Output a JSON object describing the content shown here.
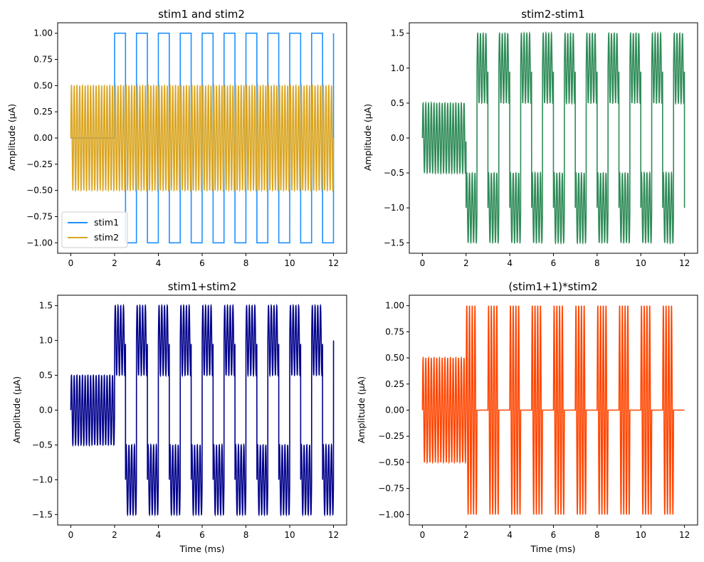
{
  "chart_data": [
    {
      "type": "line",
      "title": "stim1 and stim2",
      "xlabel": "",
      "ylabel": "Amplitude (µA)",
      "xlim": [
        -0.6,
        12.6
      ],
      "ylim": [
        -1.1,
        1.1
      ],
      "xticks": [
        "0",
        "2",
        "4",
        "6",
        "8",
        "10",
        "12"
      ],
      "yticks": [
        "1.00",
        "0.75",
        "0.50",
        "0.25",
        "0.00",
        "−0.25",
        "−0.50",
        "−0.75",
        "−1.00"
      ],
      "legend": {
        "position": "lower-left",
        "entries": [
          "stim1",
          "stim2"
        ]
      },
      "grid": false,
      "series": [
        {
          "name": "stim1",
          "color": "#1e90ff",
          "kind": "square",
          "description_values": {
            "x_start": 0,
            "x_end": 12,
            "zero_until": 2.0,
            "half_period": 0.5,
            "first_level": 1,
            "high": 1,
            "low": -1
          }
        },
        {
          "name": "stim2",
          "color": "#daa520",
          "kind": "sine",
          "description_values": {
            "x_start": 0,
            "x_end": 12,
            "amplitude": 0.5,
            "cycles_per_ms": 8
          }
        }
      ]
    },
    {
      "type": "line",
      "title": "stim2-stim1",
      "xlabel": "",
      "ylabel": "Amplitude (µA)",
      "xlim": [
        -0.6,
        12.6
      ],
      "ylim": [
        -1.65,
        1.65
      ],
      "xticks": [
        "0",
        "2",
        "4",
        "6",
        "8",
        "10",
        "12"
      ],
      "yticks": [
        "1.5",
        "1.0",
        "0.5",
        "0.0",
        "−0.5",
        "−1.0",
        "−1.5"
      ],
      "grid": false,
      "series": [
        {
          "color": "#2e8b57",
          "kind": "stim2-minus-stim1"
        }
      ]
    },
    {
      "type": "line",
      "title": "stim1+stim2",
      "xlabel": "Time (ms)",
      "ylabel": "Amplitude (µA)",
      "xlim": [
        -0.6,
        12.6
      ],
      "ylim": [
        -1.65,
        1.65
      ],
      "xticks": [
        "0",
        "2",
        "4",
        "6",
        "8",
        "10",
        "12"
      ],
      "yticks": [
        "1.5",
        "1.0",
        "0.5",
        "0.0",
        "−0.5",
        "−1.0",
        "−1.5"
      ],
      "grid": false,
      "series": [
        {
          "color": "#00008b",
          "kind": "stim1-plus-stim2"
        }
      ]
    },
    {
      "type": "line",
      "title": "(stim1+1)*stim2",
      "xlabel": "Time (ms)",
      "ylabel": "Amplitude (µA)",
      "xlim": [
        -0.6,
        12.6
      ],
      "ylim": [
        -1.1,
        1.1
      ],
      "xticks": [
        "0",
        "2",
        "4",
        "6",
        "8",
        "10",
        "12"
      ],
      "yticks": [
        "1.00",
        "0.75",
        "0.50",
        "0.25",
        "0.00",
        "−0.25",
        "−0.50",
        "−0.75",
        "−1.00"
      ],
      "grid": false,
      "series": [
        {
          "color": "#ff4500",
          "kind": "stim1plus1-times-stim2"
        }
      ]
    }
  ]
}
